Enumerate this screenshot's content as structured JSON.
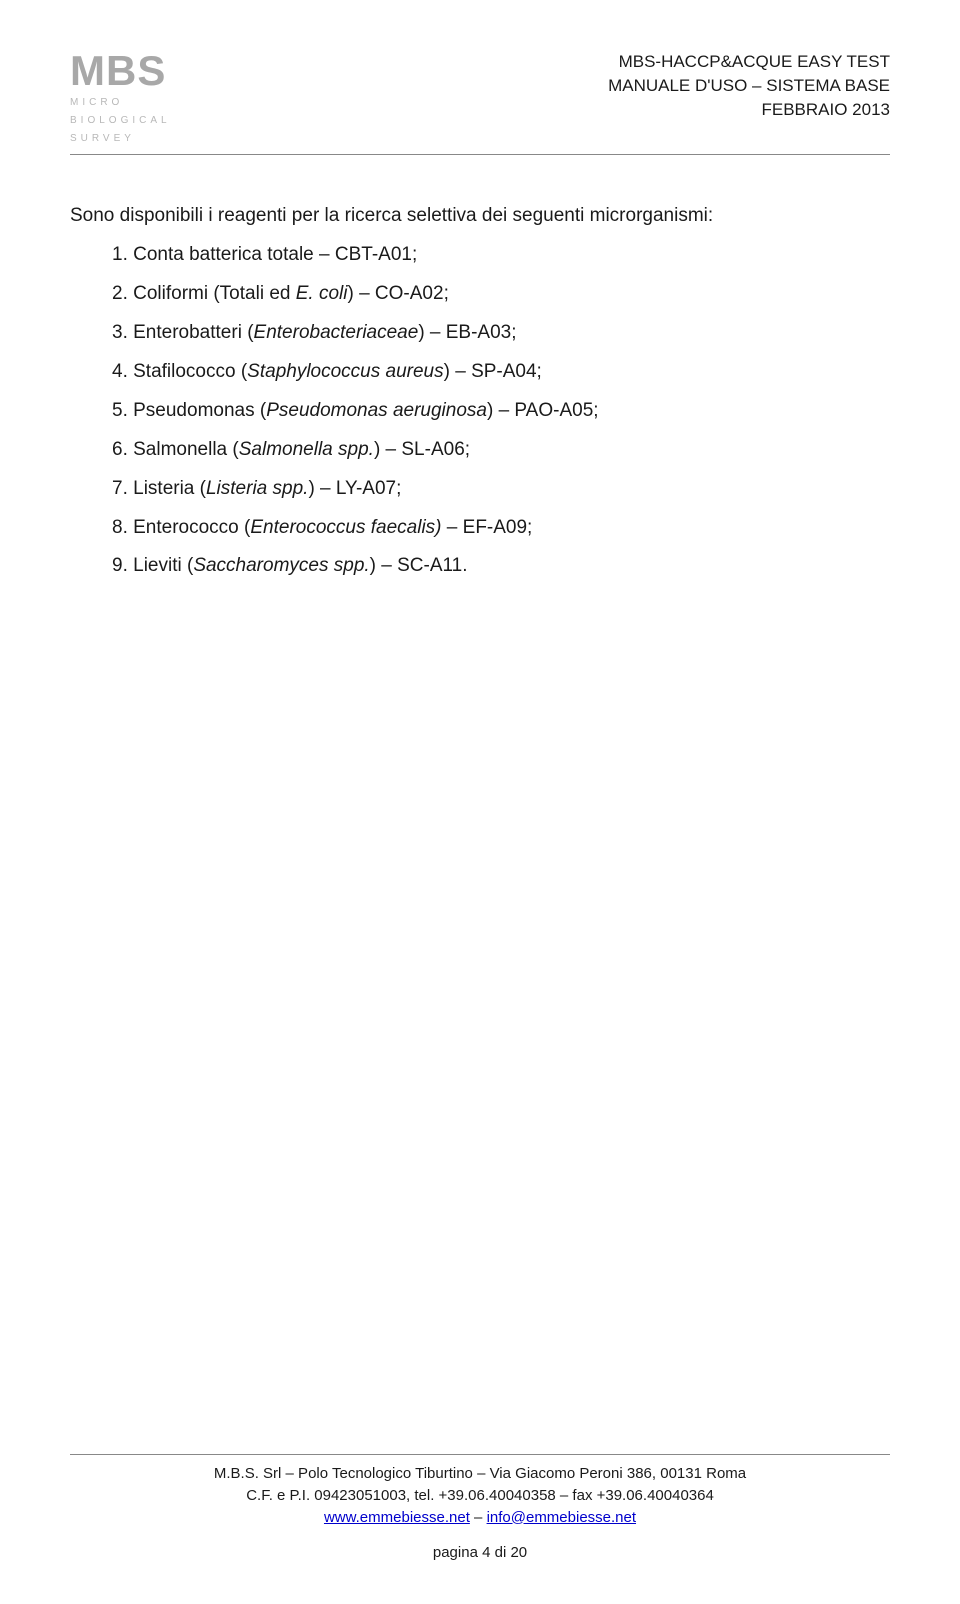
{
  "header": {
    "logo_main": "MBS",
    "logo_sub1": "MICRO",
    "logo_sub2": "BIOLOGICAL",
    "logo_sub3": "SURVEY",
    "right_line1": "MBS-HACCP&ACQUE EASY TEST",
    "right_line2": "MANUALE D'USO – SISTEMA BASE",
    "right_line3": "FEBBRAIO 2013"
  },
  "intro": "Sono disponibili i reagenti per la ricerca selettiva dei seguenti microrganismi:",
  "items": [
    {
      "n": "1.",
      "pre": "Conta batterica totale – CBT-A01;",
      "it": ""
    },
    {
      "n": "2.",
      "pre": "Coliformi (Totali ed ",
      "it": "E. coli",
      "post": ") – CO-A02;"
    },
    {
      "n": "3.",
      "pre": "Enterobatteri (",
      "it": "Enterobacteriaceae",
      "post": ") – EB-A03;"
    },
    {
      "n": "4.",
      "pre": "Stafilococco (",
      "it": "Staphylococcus aureus",
      "post": ") – SP-A04;"
    },
    {
      "n": "5.",
      "pre": "Pseudomonas (",
      "it": "Pseudomonas aeruginosa",
      "post": ") – PAO-A05;"
    },
    {
      "n": "6.",
      "pre": "Salmonella (",
      "it": "Salmonella spp.",
      "post": ") – SL-A06;"
    },
    {
      "n": "7.",
      "pre": "Listeria (",
      "it": "Listeria spp.",
      "post": ") – LY-A07;"
    },
    {
      "n": "8.",
      "pre": "Enterococco (",
      "it": "Enterococcus faecalis)",
      "post": " – EF-A09;"
    },
    {
      "n": "9.",
      "pre": "Lieviti (",
      "it": "Saccharomyces spp.",
      "post": ") – SC-A11."
    }
  ],
  "footer": {
    "line1": "M.B.S. Srl – Polo Tecnologico Tiburtino – Via Giacomo Peroni 386, 00131 Roma",
    "line2": "C.F. e P.I. 09423051003, tel. +39.06.40040358 – fax +39.06.40040364",
    "link1": "www.emmebiesse.net",
    "sep": " – ",
    "link2": "info@emmebiesse.net",
    "page": "pagina 4 di 20"
  }
}
